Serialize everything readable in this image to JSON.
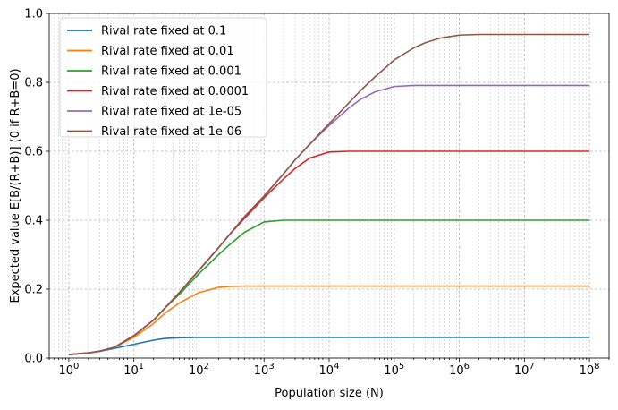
{
  "chart_data": {
    "type": "line",
    "xscale": "log",
    "xlabel": "Population size (N)",
    "ylabel": "Expected value  E[B/(R+B)]  (0 if R+B=0)",
    "xlim": [
      0.5,
      200000000
    ],
    "ylim": [
      0,
      1.0
    ],
    "grid": true,
    "legend_position": "upper-left",
    "x_ticks": [
      {
        "value": 1,
        "base": "10",
        "exp": "0"
      },
      {
        "value": 10,
        "base": "10",
        "exp": "1"
      },
      {
        "value": 100,
        "base": "10",
        "exp": "2"
      },
      {
        "value": 1000,
        "base": "10",
        "exp": "3"
      },
      {
        "value": 10000,
        "base": "10",
        "exp": "4"
      },
      {
        "value": 100000,
        "base": "10",
        "exp": "5"
      },
      {
        "value": 1000000,
        "base": "10",
        "exp": "6"
      },
      {
        "value": 10000000,
        "base": "10",
        "exp": "7"
      },
      {
        "value": 100000000,
        "base": "10",
        "exp": "8"
      }
    ],
    "y_ticks": [
      {
        "value": 0.0,
        "label": "0.0"
      },
      {
        "value": 0.2,
        "label": "0.2"
      },
      {
        "value": 0.4,
        "label": "0.4"
      },
      {
        "value": 0.6,
        "label": "0.6"
      },
      {
        "value": 0.8,
        "label": "0.8"
      },
      {
        "value": 1.0,
        "label": "1.0"
      }
    ],
    "x": [
      1,
      2,
      3,
      5,
      10,
      20,
      30,
      50,
      100,
      200,
      300,
      500,
      1000,
      2000,
      3000,
      5000,
      10000,
      20000,
      30000,
      50000,
      100000,
      200000,
      300000,
      500000,
      1000000,
      2000000,
      3000000,
      5000000,
      10000000,
      30000000,
      100000000
    ],
    "series": [
      {
        "name": "Rival rate fixed at 0.1",
        "color": "#1f77b4",
        "values": [
          0.01,
          0.015,
          0.02,
          0.028,
          0.04,
          0.052,
          0.057,
          0.059,
          0.06,
          0.06,
          0.06,
          0.06,
          0.06,
          0.06,
          0.06,
          0.06,
          0.06,
          0.06,
          0.06,
          0.06,
          0.06,
          0.06,
          0.06,
          0.06,
          0.06,
          0.06,
          0.06,
          0.06,
          0.06,
          0.06,
          0.06
        ]
      },
      {
        "name": "Rival rate fixed at 0.01",
        "color": "#ff7f0e",
        "values": [
          0.01,
          0.015,
          0.02,
          0.031,
          0.06,
          0.1,
          0.13,
          0.16,
          0.19,
          0.205,
          0.208,
          0.209,
          0.209,
          0.209,
          0.209,
          0.209,
          0.209,
          0.209,
          0.209,
          0.209,
          0.209,
          0.209,
          0.209,
          0.209,
          0.209,
          0.209,
          0.209,
          0.209,
          0.209,
          0.209,
          0.209
        ]
      },
      {
        "name": "Rival rate fixed at 0.001",
        "color": "#2ca02c",
        "values": [
          0.01,
          0.015,
          0.02,
          0.031,
          0.065,
          0.11,
          0.145,
          0.185,
          0.245,
          0.3,
          0.33,
          0.365,
          0.395,
          0.4,
          0.4,
          0.4,
          0.4,
          0.4,
          0.4,
          0.4,
          0.4,
          0.4,
          0.4,
          0.4,
          0.4,
          0.4,
          0.4,
          0.4,
          0.4,
          0.4,
          0.4
        ]
      },
      {
        "name": "Rival rate fixed at 0.0001",
        "color": "#d62728",
        "values": [
          0.01,
          0.015,
          0.02,
          0.031,
          0.065,
          0.11,
          0.145,
          0.19,
          0.255,
          0.32,
          0.36,
          0.405,
          0.465,
          0.52,
          0.55,
          0.58,
          0.598,
          0.6,
          0.6,
          0.6,
          0.6,
          0.6,
          0.6,
          0.6,
          0.6,
          0.6,
          0.6,
          0.6,
          0.6,
          0.6,
          0.6
        ]
      },
      {
        "name": "Rival rate fixed at 1e-05",
        "color": "#9467bd",
        "values": [
          0.01,
          0.015,
          0.02,
          0.031,
          0.065,
          0.11,
          0.145,
          0.19,
          0.255,
          0.32,
          0.36,
          0.41,
          0.47,
          0.535,
          0.575,
          0.62,
          0.675,
          0.725,
          0.75,
          0.772,
          0.788,
          0.791,
          0.791,
          0.791,
          0.791,
          0.791,
          0.791,
          0.791,
          0.791,
          0.791,
          0.791
        ]
      },
      {
        "name": "Rival rate fixed at 1e-06",
        "color": "#8c564b",
        "values": [
          0.01,
          0.015,
          0.02,
          0.031,
          0.065,
          0.11,
          0.145,
          0.19,
          0.255,
          0.32,
          0.36,
          0.41,
          0.47,
          0.535,
          0.575,
          0.62,
          0.68,
          0.74,
          0.775,
          0.815,
          0.865,
          0.9,
          0.915,
          0.928,
          0.937,
          0.939,
          0.939,
          0.939,
          0.939,
          0.939,
          0.939
        ]
      }
    ]
  }
}
